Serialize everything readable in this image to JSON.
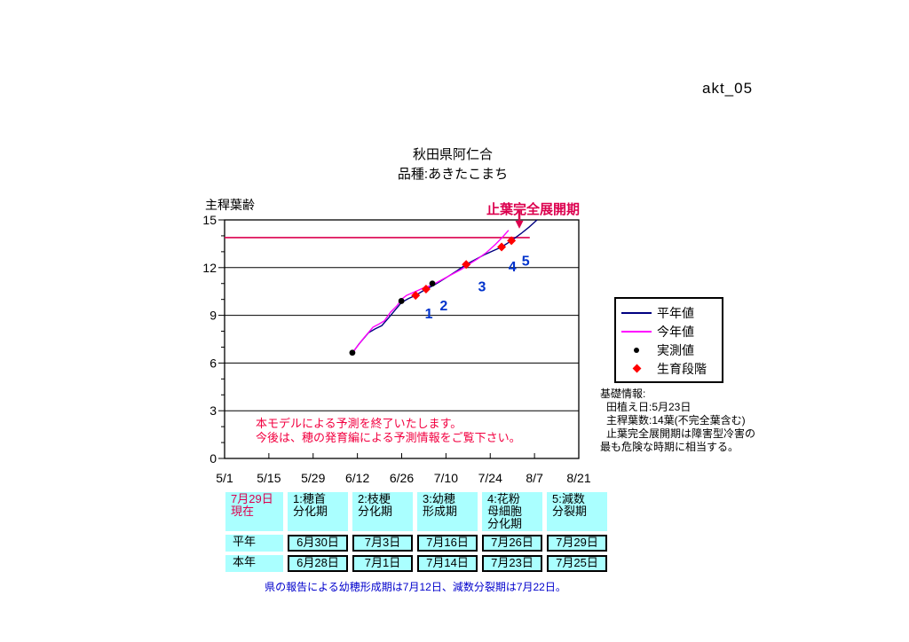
{
  "page": {
    "doc_label": "akt_05"
  },
  "colors": {
    "navy": "#000080",
    "magenta": "#ff00ff",
    "red": "#ff0000",
    "black": "#000000",
    "crimson": "#dc004e",
    "notice_red": "#f20040",
    "stage_blue": "#0033cc",
    "note_blue": "#0000cc",
    "cyan": "#aaffff"
  },
  "chart_data": {
    "type": "line",
    "title": "秋田県阿仁合",
    "subtitle": "品種:あきたこまち",
    "y_axis_label": "主稈葉齢",
    "ylim": [
      0,
      15
    ],
    "y_ticks": [
      0,
      3,
      6,
      9,
      12,
      15
    ],
    "gridlines_leaf": [
      3,
      6,
      9,
      12
    ],
    "x_tick_labels": [
      "5/1",
      "5/15",
      "5/29",
      "6/12",
      "6/26",
      "7/10",
      "7/24",
      "8/7",
      "8/21"
    ],
    "x_tick_days": [
      0,
      14,
      28,
      42,
      56,
      70,
      84,
      98,
      112
    ],
    "grid": "horizontal-only",
    "legend_position": "right",
    "flag_leaf_line": {
      "leaf": 14,
      "day_start": 0,
      "day_end": 96.5,
      "label": "止葉完全展開期"
    },
    "annotation_arrow": {
      "day": 93.2,
      "leaf_tip": 14.45,
      "leaf_tail": 15.6
    },
    "series": [
      {
        "name": "平年値",
        "color_key": "navy",
        "points": [
          [
            40.4,
            6.63
          ],
          [
            42.5,
            7.2
          ],
          [
            45.5,
            7.9
          ],
          [
            47.6,
            8.15
          ],
          [
            49.7,
            8.35
          ],
          [
            51.9,
            8.85
          ],
          [
            54,
            9.35
          ],
          [
            55.9,
            9.8
          ],
          [
            58.1,
            10.05
          ],
          [
            60.4,
            10.25
          ],
          [
            62,
            10.45
          ],
          [
            63.7,
            10.65
          ],
          [
            65.8,
            10.85
          ],
          [
            67.9,
            11.1
          ],
          [
            70.7,
            11.45
          ],
          [
            73.5,
            11.8
          ],
          [
            76.4,
            12.2
          ],
          [
            79.2,
            12.5
          ],
          [
            82,
            12.8
          ],
          [
            84.8,
            13.05
          ],
          [
            87.6,
            13.3
          ],
          [
            89.2,
            13.5
          ],
          [
            90.7,
            13.7
          ],
          [
            93.8,
            14.15
          ],
          [
            96.3,
            14.55
          ],
          [
            98.8,
            15.0
          ]
        ]
      },
      {
        "name": "今年値",
        "color_key": "magenta",
        "points": [
          [
            40.4,
            6.63
          ],
          [
            43.5,
            7.45
          ],
          [
            46.9,
            8.25
          ],
          [
            48.8,
            8.45
          ],
          [
            50.5,
            8.65
          ],
          [
            52.5,
            9.2
          ],
          [
            54.5,
            9.6
          ],
          [
            55.9,
            10.0
          ],
          [
            57.5,
            10.25
          ],
          [
            59.2,
            10.4
          ],
          [
            61,
            10.55
          ],
          [
            62.6,
            10.7
          ],
          [
            64.3,
            10.8
          ],
          [
            66.5,
            11.0
          ],
          [
            69.3,
            11.3
          ],
          [
            72.1,
            11.6
          ],
          [
            74.9,
            11.9
          ],
          [
            77.2,
            12.2
          ],
          [
            80,
            12.55
          ],
          [
            82.8,
            12.95
          ],
          [
            85.6,
            13.45
          ],
          [
            87.8,
            13.9
          ],
          [
            89.8,
            14.35
          ]
        ]
      }
    ],
    "observed": {
      "name": "実測値",
      "color_key": "black",
      "points": [
        [
          40.4,
          6.65
        ],
        [
          55.9,
          9.9
        ],
        [
          65.7,
          11.0
        ],
        [
          76.4,
          12.2
        ]
      ]
    },
    "stages": {
      "name": "生育段階",
      "color_key": "red",
      "points": [
        [
          60.4,
          10.25
        ],
        [
          63.7,
          10.65
        ],
        [
          76.4,
          12.2
        ],
        [
          87.6,
          13.3
        ],
        [
          90.7,
          13.7
        ]
      ]
    },
    "stage_labels": [
      {
        "text": "1",
        "day": 64.6,
        "leaf": 9.15
      },
      {
        "text": "2",
        "day": 69.3,
        "leaf": 9.65
      },
      {
        "text": "3",
        "day": 81.4,
        "leaf": 10.85
      },
      {
        "text": "4",
        "day": 91.0,
        "leaf": 12.1
      },
      {
        "text": "5",
        "day": 95.2,
        "leaf": 12.45
      }
    ]
  },
  "notice": {
    "line1": "本モデルによる予測を終了いたします。",
    "line2": "今後は、穂の発育編による予測情報をご覧下さい。"
  },
  "legend": {
    "items": [
      {
        "label": "平年値",
        "marker": "line",
        "color_key": "navy"
      },
      {
        "label": "今年値",
        "marker": "line",
        "color_key": "magenta"
      },
      {
        "label": "実測値",
        "marker": "dot",
        "color_key": "black"
      },
      {
        "label": "生育段階",
        "marker": "diamond",
        "color_key": "red"
      }
    ]
  },
  "info": {
    "title": "基礎情報:",
    "line1": "田植え日:5月23日",
    "line2": "主稈葉数:14葉(不完全葉含む)",
    "line3": "止葉完全展開期は障害型冷害の",
    "line4": "最も危険な時期に相当する。"
  },
  "table": {
    "period_label": "7月29日\n現在",
    "columns": [
      "1:穂首\n分化期",
      "2:枝梗\n分化期",
      "3:幼穂\n形成期",
      "4:花粉\n母細胞\n分化期",
      "5:減数\n分裂期"
    ],
    "rows": [
      {
        "label": "平年",
        "cells": [
          "6月30日",
          "7月3日",
          "7月16日",
          "7月26日",
          "7月29日"
        ]
      },
      {
        "label": "本年",
        "cells": [
          "6月28日",
          "7月1日",
          "7月14日",
          "7月23日",
          "7月25日"
        ]
      }
    ]
  },
  "footnote": "県の報告による幼穂形成期は7月12日、減数分裂期は7月22日。"
}
